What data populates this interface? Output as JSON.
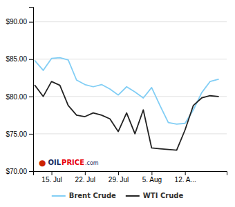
{
  "chart_data": {
    "type": "line",
    "x": [
      0,
      1,
      2,
      3,
      4,
      5,
      6,
      7,
      8,
      9,
      10,
      11,
      12,
      13,
      14,
      15,
      16,
      17,
      18,
      19,
      20,
      21,
      22
    ],
    "series": [
      {
        "name": "Brent Crude",
        "color": "#82cef5",
        "values": [
          84.8,
          83.5,
          85.1,
          85.2,
          84.9,
          82.2,
          81.6,
          81.3,
          81.6,
          81.0,
          80.2,
          81.3,
          80.6,
          79.8,
          81.2,
          78.8,
          76.5,
          76.3,
          76.4,
          78.2,
          80.5,
          82.0,
          82.3
        ]
      },
      {
        "name": "WTI Crude",
        "color": "#222222",
        "values": [
          81.5,
          80.0,
          82.0,
          81.5,
          78.8,
          77.5,
          77.3,
          77.8,
          77.5,
          77.0,
          75.3,
          77.8,
          75.0,
          78.2,
          73.1,
          73.0,
          72.9,
          72.8,
          75.5,
          78.8,
          79.8,
          80.1,
          80.0
        ]
      }
    ],
    "xlim": [
      -0.2,
      23
    ],
    "xticks": [
      {
        "value": 2,
        "label": "15. Jul"
      },
      {
        "value": 6,
        "label": "22. Jul"
      },
      {
        "value": 10,
        "label": "29. Jul"
      },
      {
        "value": 14,
        "label": "5. Aug"
      },
      {
        "value": 18,
        "label": "12. A..."
      }
    ],
    "ylim": [
      70,
      92
    ],
    "yticks": [
      {
        "value": 70,
        "label": "$70.00"
      },
      {
        "value": 75,
        "label": "$75.00"
      },
      {
        "value": 80,
        "label": "$80.00"
      },
      {
        "value": 85,
        "label": "$85.00"
      },
      {
        "value": 90,
        "label": "$90.00"
      }
    ],
    "grid": true,
    "legend": "bottom",
    "annotations": [
      "●",
      "OIL",
      "PRICE",
      ".com"
    ]
  }
}
